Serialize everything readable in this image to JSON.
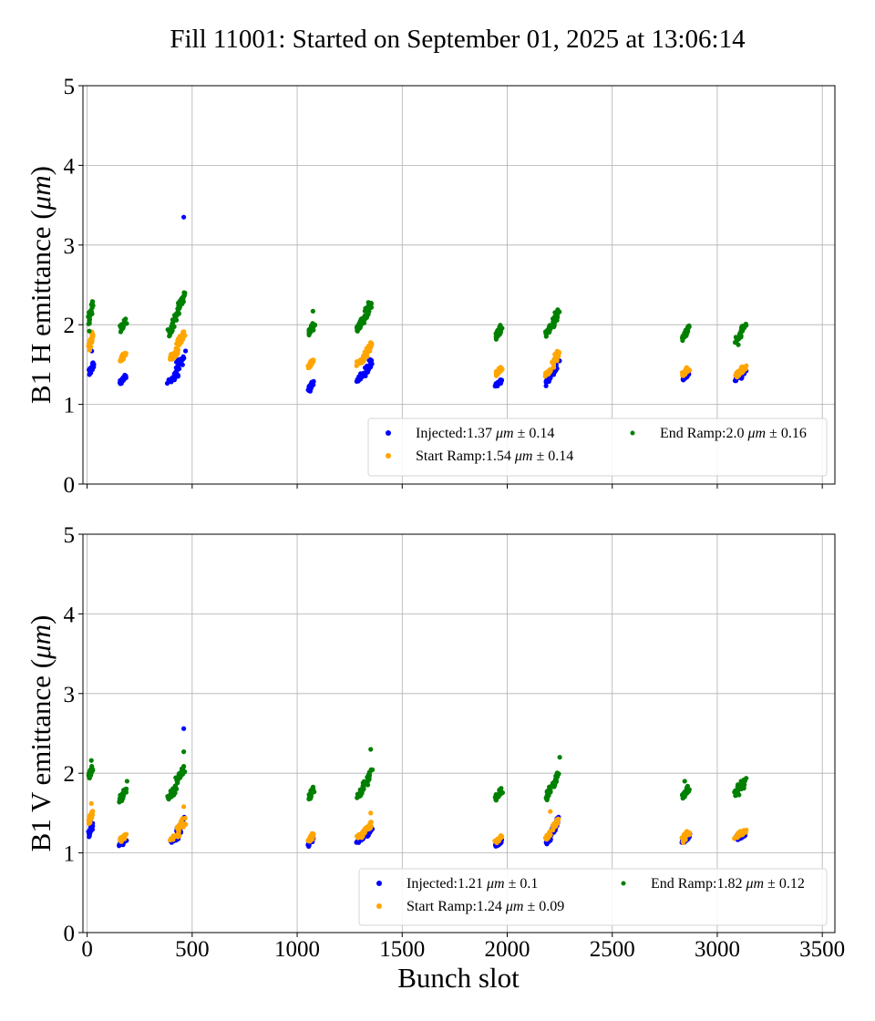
{
  "chart_data": [
    {
      "type": "scatter",
      "panel": "top",
      "title": "Fill 11001: Started on September 01, 2025 at 13:06:14",
      "xlabel": "",
      "ylabel": "B1 H emittance (μm)",
      "ylabel_parts": [
        "B1 H emittance (",
        "μm",
        ")"
      ],
      "xlim": [
        -20,
        3560
      ],
      "ylim": [
        0,
        5
      ],
      "xticks": [
        0,
        500,
        1000,
        1500,
        2000,
        2500,
        3000,
        3500
      ],
      "xtick_labels_visible": false,
      "yticks": [
        0,
        1,
        2,
        3,
        4,
        5
      ],
      "grid": true,
      "legend_placement": "lower-right",
      "legend_ncol": 2,
      "series": [
        {
          "name": "Injected",
          "legend": {
            "prefix": "Injected:",
            "mean": "1.37",
            "unit": "μm",
            "pm": "±",
            "std": "0.14"
          },
          "color": "#0000ff",
          "clusters": [
            {
              "x": [
                5,
                35
              ],
              "y": [
                1.35,
                1.55
              ]
            },
            {
              "x": [
                150,
                190
              ],
              "y": [
                1.25,
                1.37
              ]
            },
            {
              "x": [
                380,
                440
              ],
              "y": [
                1.25,
                1.4
              ]
            },
            {
              "x": [
                410,
                470
              ],
              "y": [
                1.35,
                1.68
              ]
            },
            {
              "x": [
                1050,
                1080
              ],
              "y": [
                1.15,
                1.3
              ]
            },
            {
              "x": [
                1280,
                1330
              ],
              "y": [
                1.28,
                1.42
              ]
            },
            {
              "x": [
                1320,
                1360
              ],
              "y": [
                1.35,
                1.6
              ]
            },
            {
              "x": [
                1940,
                1980
              ],
              "y": [
                1.22,
                1.32
              ]
            },
            {
              "x": [
                2180,
                2210
              ],
              "y": [
                1.23,
                1.4
              ]
            },
            {
              "x": [
                2210,
                2250
              ],
              "y": [
                1.35,
                1.62
              ]
            },
            {
              "x": [
                2830,
                2870
              ],
              "y": [
                1.3,
                1.42
              ]
            },
            {
              "x": [
                3080,
                3140
              ],
              "y": [
                1.28,
                1.45
              ]
            }
          ],
          "outliers": [
            {
              "x": 460,
              "y": 3.35
            },
            {
              "x": 22,
              "y": 1.67
            }
          ]
        },
        {
          "name": "Start Ramp",
          "legend": {
            "prefix": "Start Ramp:",
            "mean": "1.54",
            "unit": "μm",
            "pm": "±",
            "std": "0.14"
          },
          "color": "#ffa500",
          "clusters": [
            {
              "x": [
                5,
                30
              ],
              "y": [
                1.65,
                1.95
              ]
            },
            {
              "x": [
                150,
                190
              ],
              "y": [
                1.53,
                1.67
              ]
            },
            {
              "x": [
                390,
                440
              ],
              "y": [
                1.55,
                1.7
              ]
            },
            {
              "x": [
                420,
                470
              ],
              "y": [
                1.68,
                1.95
              ]
            },
            {
              "x": [
                1050,
                1080
              ],
              "y": [
                1.45,
                1.58
              ]
            },
            {
              "x": [
                1280,
                1330
              ],
              "y": [
                1.48,
                1.62
              ]
            },
            {
              "x": [
                1320,
                1360
              ],
              "y": [
                1.58,
                1.8
              ]
            },
            {
              "x": [
                1940,
                1980
              ],
              "y": [
                1.35,
                1.48
              ]
            },
            {
              "x": [
                2180,
                2210
              ],
              "y": [
                1.35,
                1.45
              ]
            },
            {
              "x": [
                2210,
                2250
              ],
              "y": [
                1.45,
                1.72
              ]
            },
            {
              "x": [
                2830,
                2870
              ],
              "y": [
                1.35,
                1.48
              ]
            },
            {
              "x": [
                3080,
                3140
              ],
              "y": [
                1.33,
                1.5
              ]
            }
          ],
          "outliers": []
        },
        {
          "name": "End Ramp",
          "legend": {
            "prefix": "End Ramp:",
            "mean": "2.0",
            "unit": "μm",
            "pm": "±",
            "std": "0.16"
          },
          "color": "#008000",
          "clusters": [
            {
              "x": [
                5,
                30
              ],
              "y": [
                2.0,
                2.32
              ]
            },
            {
              "x": [
                150,
                190
              ],
              "y": [
                1.9,
                2.08
              ]
            },
            {
              "x": [
                380,
                430
              ],
              "y": [
                1.85,
                2.15
              ]
            },
            {
              "x": [
                420,
                470
              ],
              "y": [
                2.1,
                2.45
              ]
            },
            {
              "x": [
                1050,
                1085
              ],
              "y": [
                1.85,
                2.05
              ]
            },
            {
              "x": [
                1280,
                1320
              ],
              "y": [
                1.9,
                2.1
              ]
            },
            {
              "x": [
                1310,
                1360
              ],
              "y": [
                2.05,
                2.32
              ]
            },
            {
              "x": [
                1940,
                1980
              ],
              "y": [
                1.8,
                2.02
              ]
            },
            {
              "x": [
                2180,
                2210
              ],
              "y": [
                1.85,
                2.0
              ]
            },
            {
              "x": [
                2210,
                2250
              ],
              "y": [
                1.95,
                2.22
              ]
            },
            {
              "x": [
                2830,
                2870
              ],
              "y": [
                1.78,
                2.0
              ]
            },
            {
              "x": [
                3080,
                3140
              ],
              "y": [
                1.72,
                2.03
              ]
            }
          ],
          "outliers": [
            {
              "x": 1075,
              "y": 2.17
            },
            {
              "x": 10,
              "y": 1.92
            }
          ]
        }
      ]
    },
    {
      "type": "scatter",
      "panel": "bottom",
      "xlabel": "Bunch slot",
      "ylabel": "B1 V emittance (μm)",
      "ylabel_parts": [
        "B1 V emittance (",
        "μm",
        ")"
      ],
      "xlim": [
        -20,
        3560
      ],
      "ylim": [
        0,
        5
      ],
      "xticks": [
        0,
        500,
        1000,
        1500,
        2000,
        2500,
        3000,
        3500
      ],
      "xtick_labels": [
        "0",
        "500",
        "1000",
        "1500",
        "2000",
        "2500",
        "3000",
        "3500"
      ],
      "yticks": [
        0,
        1,
        2,
        3,
        4,
        5
      ],
      "grid": true,
      "legend_placement": "lower-right",
      "legend_ncol": 2,
      "series": [
        {
          "name": "Injected",
          "legend": {
            "prefix": "Injected:",
            "mean": "1.21",
            "unit": "μm",
            "pm": "±",
            "std": "0.1"
          },
          "color": "#0000ff",
          "clusters": [
            {
              "x": [
                5,
                30
              ],
              "y": [
                1.2,
                1.38
              ]
            },
            {
              "x": [
                150,
                190
              ],
              "y": [
                1.08,
                1.18
              ]
            },
            {
              "x": [
                390,
                440
              ],
              "y": [
                1.12,
                1.22
              ]
            },
            {
              "x": [
                420,
                470
              ],
              "y": [
                1.2,
                1.45
              ]
            },
            {
              "x": [
                1050,
                1080
              ],
              "y": [
                1.08,
                1.2
              ]
            },
            {
              "x": [
                1280,
                1330
              ],
              "y": [
                1.12,
                1.25
              ]
            },
            {
              "x": [
                1320,
                1360
              ],
              "y": [
                1.18,
                1.35
              ]
            },
            {
              "x": [
                1940,
                1980
              ],
              "y": [
                1.08,
                1.18
              ]
            },
            {
              "x": [
                2180,
                2210
              ],
              "y": [
                1.1,
                1.22
              ]
            },
            {
              "x": [
                2210,
                2250
              ],
              "y": [
                1.22,
                1.45
              ]
            },
            {
              "x": [
                2830,
                2870
              ],
              "y": [
                1.1,
                1.25
              ]
            },
            {
              "x": [
                3080,
                3140
              ],
              "y": [
                1.14,
                1.28
              ]
            }
          ],
          "outliers": [
            {
              "x": 460,
              "y": 2.56
            }
          ]
        },
        {
          "name": "Start Ramp",
          "legend": {
            "prefix": "Start Ramp:",
            "mean": "1.24",
            "unit": "μm",
            "pm": "±",
            "std": "0.09"
          },
          "color": "#ffa500",
          "clusters": [
            {
              "x": [
                5,
                30
              ],
              "y": [
                1.35,
                1.55
              ]
            },
            {
              "x": [
                150,
                190
              ],
              "y": [
                1.12,
                1.25
              ]
            },
            {
              "x": [
                390,
                440
              ],
              "y": [
                1.15,
                1.25
              ]
            },
            {
              "x": [
                420,
                470
              ],
              "y": [
                1.22,
                1.45
              ]
            },
            {
              "x": [
                1050,
                1080
              ],
              "y": [
                1.12,
                1.25
              ]
            },
            {
              "x": [
                1280,
                1330
              ],
              "y": [
                1.15,
                1.3
              ]
            },
            {
              "x": [
                1320,
                1360
              ],
              "y": [
                1.25,
                1.42
              ]
            },
            {
              "x": [
                1940,
                1980
              ],
              "y": [
                1.12,
                1.22
              ]
            },
            {
              "x": [
                2180,
                2210
              ],
              "y": [
                1.15,
                1.28
              ]
            },
            {
              "x": [
                2210,
                2250
              ],
              "y": [
                1.28,
                1.45
              ]
            },
            {
              "x": [
                2830,
                2870
              ],
              "y": [
                1.12,
                1.3
              ]
            },
            {
              "x": [
                3080,
                3140
              ],
              "y": [
                1.18,
                1.3
              ]
            }
          ],
          "outliers": [
            {
              "x": 20,
              "y": 1.62
            },
            {
              "x": 460,
              "y": 1.58
            },
            {
              "x": 1350,
              "y": 1.5
            },
            {
              "x": 2205,
              "y": 1.52
            }
          ]
        },
        {
          "name": "End Ramp",
          "legend": {
            "prefix": "End Ramp:",
            "mean": "1.82",
            "unit": "μm",
            "pm": "±",
            "std": "0.12"
          },
          "color": "#008000",
          "clusters": [
            {
              "x": [
                5,
                30
              ],
              "y": [
                1.92,
                2.1
              ]
            },
            {
              "x": [
                150,
                190
              ],
              "y": [
                1.62,
                1.82
              ]
            },
            {
              "x": [
                380,
                430
              ],
              "y": [
                1.65,
                1.85
              ]
            },
            {
              "x": [
                420,
                470
              ],
              "y": [
                1.85,
                2.1
              ]
            },
            {
              "x": [
                1050,
                1085
              ],
              "y": [
                1.65,
                1.85
              ]
            },
            {
              "x": [
                1280,
                1320
              ],
              "y": [
                1.68,
                1.82
              ]
            },
            {
              "x": [
                1310,
                1360
              ],
              "y": [
                1.8,
                2.05
              ]
            },
            {
              "x": [
                1940,
                1980
              ],
              "y": [
                1.65,
                1.82
              ]
            },
            {
              "x": [
                2180,
                2210
              ],
              "y": [
                1.65,
                1.85
              ]
            },
            {
              "x": [
                2210,
                2250
              ],
              "y": [
                1.8,
                2.05
              ]
            },
            {
              "x": [
                2830,
                2870
              ],
              "y": [
                1.65,
                1.85
              ]
            },
            {
              "x": [
                3080,
                3140
              ],
              "y": [
                1.7,
                1.95
              ]
            }
          ],
          "outliers": [
            {
              "x": 20,
              "y": 2.16
            },
            {
              "x": 460,
              "y": 2.27
            },
            {
              "x": 1350,
              "y": 2.3
            },
            {
              "x": 2250,
              "y": 2.2
            },
            {
              "x": 190,
              "y": 1.9
            },
            {
              "x": 2845,
              "y": 1.9
            }
          ]
        }
      ]
    }
  ]
}
